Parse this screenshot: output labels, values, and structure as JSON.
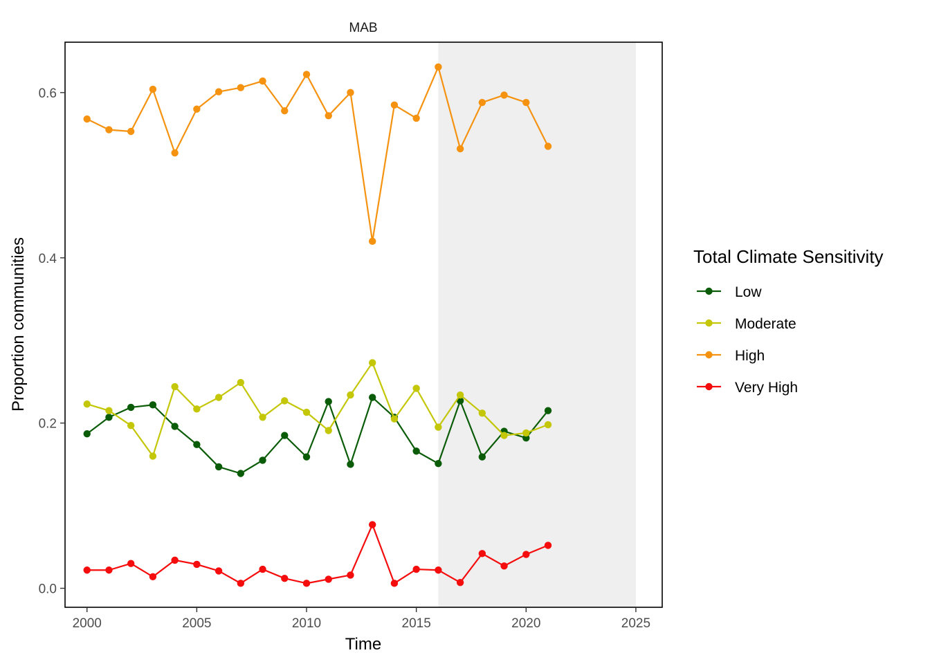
{
  "chart_data": {
    "type": "line",
    "title": "MAB",
    "xlabel": "Time",
    "ylabel": "Proportion communities",
    "xlim": [
      1999,
      2026.2
    ],
    "ylim": [
      -0.023,
      0.661
    ],
    "x_ticks": [
      2000,
      2005,
      2010,
      2015,
      2020,
      2025
    ],
    "y_ticks": [
      0.0,
      0.2,
      0.4,
      0.6
    ],
    "y_tick_labels": [
      "0.0",
      "0.2",
      "0.4",
      "0.6"
    ],
    "grid": false,
    "shaded_region": {
      "x_start": 2016,
      "x_end": 2025,
      "color": "#efefef"
    },
    "legend": {
      "title": "Total Climate Sensitivity",
      "position": "right"
    },
    "x": [
      2000,
      2001,
      2002,
      2003,
      2004,
      2005,
      2006,
      2007,
      2008,
      2009,
      2010,
      2011,
      2012,
      2013,
      2014,
      2015,
      2016,
      2017,
      2018,
      2019,
      2020,
      2021
    ],
    "series": [
      {
        "name": "Low",
        "color": "#0b5c08",
        "values": [
          0.187,
          0.207,
          0.219,
          0.222,
          0.196,
          0.174,
          0.147,
          0.139,
          0.155,
          0.185,
          0.159,
          0.226,
          0.15,
          0.231,
          0.207,
          0.166,
          0.151,
          0.227,
          0.159,
          0.19,
          0.182,
          0.215
        ]
      },
      {
        "name": "Moderate",
        "color": "#c3c708",
        "values": [
          0.223,
          0.215,
          0.197,
          0.16,
          0.244,
          0.217,
          0.231,
          0.249,
          0.207,
          0.227,
          0.213,
          0.191,
          0.234,
          0.273,
          0.205,
          0.242,
          0.195,
          0.234,
          0.212,
          0.185,
          0.188,
          0.198
        ]
      },
      {
        "name": "High",
        "color": "#f59210",
        "values": [
          0.568,
          0.555,
          0.553,
          0.604,
          0.527,
          0.58,
          0.601,
          0.606,
          0.614,
          0.578,
          0.622,
          0.572,
          0.6,
          0.42,
          0.585,
          0.569,
          0.631,
          0.532,
          0.588,
          0.597,
          0.588,
          0.535
        ]
      },
      {
        "name": "Very High",
        "color": "#f50c0c",
        "values": [
          0.022,
          0.022,
          0.03,
          0.014,
          0.034,
          0.029,
          0.021,
          0.006,
          0.023,
          0.012,
          0.006,
          0.011,
          0.016,
          0.077,
          0.006,
          0.023,
          0.022,
          0.007,
          0.042,
          0.027,
          0.041,
          0.052
        ]
      }
    ]
  }
}
